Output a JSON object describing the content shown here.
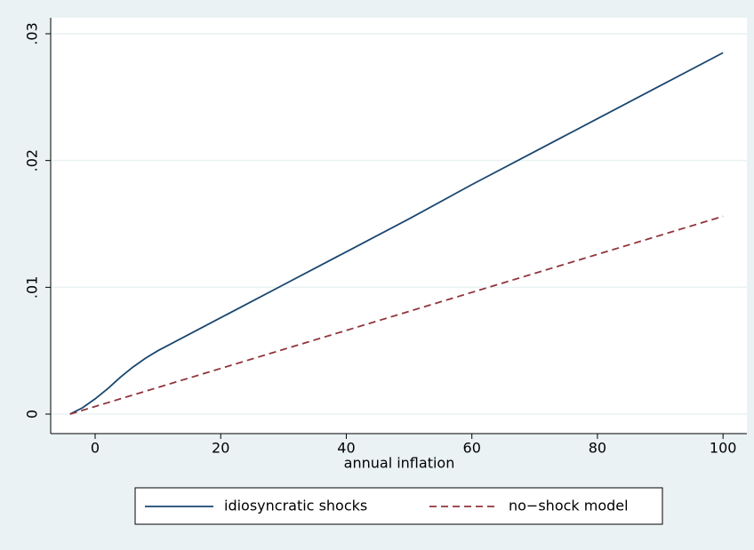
{
  "chart_data": {
    "type": "line",
    "xlabel": "annual inflation",
    "x": [
      -4,
      -2,
      0,
      2,
      4,
      6,
      8,
      10,
      20,
      30,
      40,
      50,
      60,
      70,
      80,
      90,
      100
    ],
    "series": [
      {
        "name": "idiosyncratic shocks",
        "color": "#1a476f",
        "dash": false,
        "values": [
          0,
          0.0005,
          0.0012,
          0.002,
          0.0029,
          0.0037,
          0.0044,
          0.005,
          0.0076,
          0.0102,
          0.0128,
          0.0154,
          0.0181,
          0.0207,
          0.0233,
          0.0259,
          0.0285
        ]
      },
      {
        "name": "no−shock model",
        "color": "#90353b",
        "dash": true,
        "values": [
          0,
          0.0003,
          0.0006,
          0.0009,
          0.0012,
          0.0015,
          0.0018,
          0.0021,
          0.0036,
          0.0051,
          0.0066,
          0.0081,
          0.0096,
          0.0111,
          0.0126,
          0.0141,
          0.0156
        ]
      }
    ],
    "xlim": [
      -7.08,
      103.8
    ],
    "xticks": [
      0,
      20,
      40,
      60,
      80,
      100
    ],
    "ylim": [
      -0.00154,
      0.03126
    ],
    "yticks": [
      0,
      {
        "value": 0.01,
        "label": ".01"
      },
      {
        "value": 0.02,
        "label": ".02"
      },
      {
        "value": 0.03,
        "label": ".03"
      }
    ],
    "grid": true
  }
}
